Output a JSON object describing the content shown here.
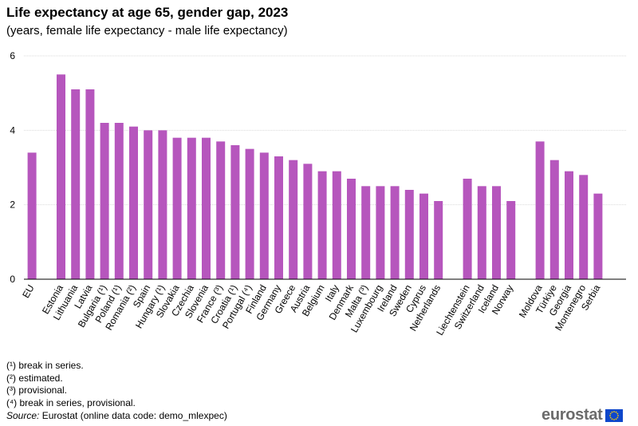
{
  "header": {
    "title": "Life expectancy at age 65, gender gap, 2023",
    "subtitle": "(years, female life expectancy - male life expectancy)"
  },
  "chart_data": {
    "type": "bar",
    "title": "Life expectancy at age 65, gender gap, 2023",
    "subtitle": "(years, female life expectancy - male life expectancy)",
    "xlabel": "",
    "ylabel": "",
    "ylim": [
      0,
      6
    ],
    "yticks": [
      "0",
      "2",
      "4",
      "6"
    ],
    "grid": true,
    "color": "#b656bd",
    "groups": [
      {
        "categories": [
          "EU"
        ],
        "values": [
          3.4
        ]
      },
      {
        "categories": [
          "Estonia",
          "Lithuania",
          "Latvia",
          "Bulgaria (¹)",
          "Poland (¹)",
          "Romania (²)",
          "Spain",
          "Hungary (¹)",
          "Slovakia",
          "Czechia",
          "Slovenia",
          "France (³)",
          "Croatia (¹)",
          "Portugal (⁴)",
          "Finland",
          "Germany",
          "Greece",
          "Austria",
          "Belgium",
          "Italy",
          "Denmark",
          "Malta (³)",
          "Luxembourg",
          "Ireland",
          "Sweden",
          "Cyprus",
          "Netherlands"
        ],
        "values": [
          5.5,
          5.1,
          5.1,
          4.2,
          4.2,
          4.1,
          4.0,
          4.0,
          3.8,
          3.8,
          3.8,
          3.7,
          3.6,
          3.5,
          3.4,
          3.3,
          3.2,
          3.1,
          2.9,
          2.9,
          2.7,
          2.5,
          2.5,
          2.5,
          2.4,
          2.3,
          2.1
        ]
      },
      {
        "categories": [
          "Liechtenstein",
          "Switzerland",
          "Iceland",
          "Norway"
        ],
        "values": [
          2.7,
          2.5,
          2.5,
          2.1
        ]
      },
      {
        "categories": [
          "Moldova",
          "Türkiye",
          "Georgia",
          "Montenegro",
          "Serbia"
        ],
        "values": [
          3.7,
          3.2,
          2.9,
          2.8,
          2.3
        ]
      }
    ]
  },
  "footnotes": [
    "(¹) break in series.",
    "(²) estimated.",
    "(³) provisional.",
    "(⁴) break in series, provisional."
  ],
  "source": {
    "label": "Source:",
    "text": " Eurostat (online data code: demo_mlexpec)"
  },
  "logo": {
    "text": "eurostat",
    "flag_color": "#0e47cb",
    "star_color": "#ffcc00"
  }
}
